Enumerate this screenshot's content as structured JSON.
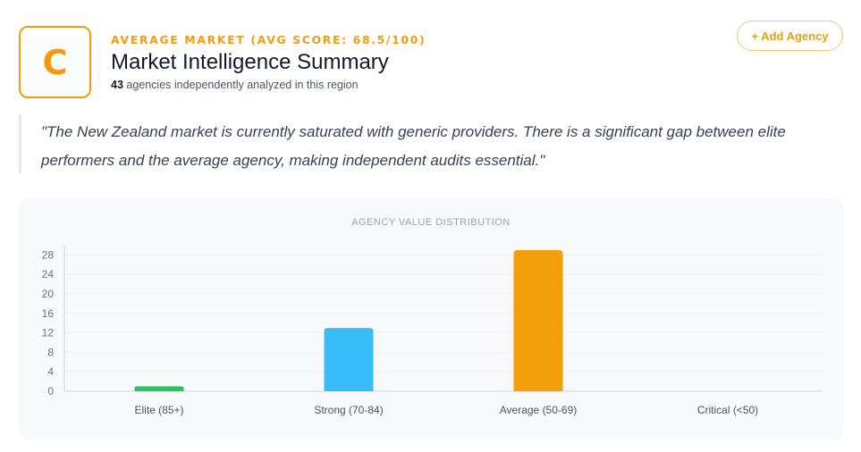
{
  "header": {
    "grade": "C",
    "eyebrow": "AVERAGE MARKET (AVG SCORE: 68.5/100)",
    "title": "Market Intelligence Summary",
    "agency_count": "43",
    "subline_suffix": " agencies independently analyzed in this region",
    "accent_color": "#f39c12"
  },
  "actions": {
    "add_agency_label": "+ Add Agency"
  },
  "quote": {
    "text": "\"The New Zealand market is currently saturated with generic providers. There is a significant gap between elite performers and the average agency, making independent audits essential.\""
  },
  "chart_data": {
    "type": "bar",
    "title": "AGENCY VALUE DISTRIBUTION",
    "categories": [
      "Elite (85+)",
      "Strong (70-84)",
      "Average (50-69)",
      "Critical (<50)"
    ],
    "values": [
      1,
      13,
      29,
      0
    ],
    "colors": [
      "#22c55e",
      "#38bdf8",
      "#f59e0b",
      "#ef4444"
    ],
    "yticks": [
      0,
      4,
      8,
      12,
      16,
      20,
      24,
      28
    ],
    "ylim": [
      0,
      29
    ],
    "grid": true,
    "xlabel": "",
    "ylabel": ""
  }
}
